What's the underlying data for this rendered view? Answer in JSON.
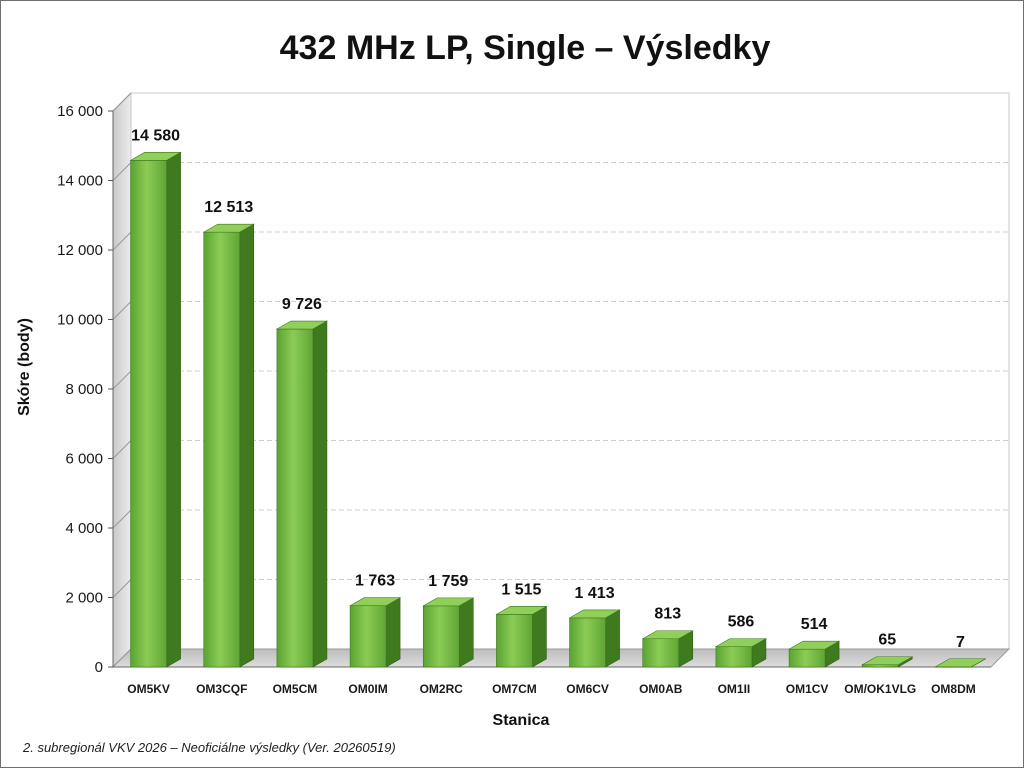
{
  "chart_data": {
    "type": "bar",
    "title": "432 MHz LP, Single – Výsledky",
    "xlabel": "Stanica",
    "ylabel": "Skóre (body)",
    "ylim": [
      0,
      16000
    ],
    "yticks": [
      "0",
      "2 000",
      "4 000",
      "6 000",
      "8 000",
      "10 000",
      "12 000",
      "14 000",
      "16 000"
    ],
    "grid": true,
    "categories": [
      "OM5KV",
      "OM3CQF",
      "OM5CM",
      "OM0IM",
      "OM2RC",
      "OM7CM",
      "OM6CV",
      "OM0AB",
      "OM1II",
      "OM1CV",
      "OM/OK1VLG",
      "OM8DM"
    ],
    "values": [
      14580,
      12513,
      9726,
      1763,
      1759,
      1515,
      1413,
      813,
      586,
      514,
      65,
      7
    ],
    "value_labels": [
      "14 580",
      "12 513",
      "9 726",
      "1 763",
      "1 759",
      "1 515",
      "1 413",
      "813",
      "586",
      "514",
      "65",
      "7"
    ],
    "bar_color": "#6cb33f",
    "bar_side_color": "#3f7a1e",
    "bar_top_color": "#8fcf5a"
  },
  "footnote": "2. subregionál VKV 2026 – Neoficiálne výsledky (Ver. 20260519)"
}
